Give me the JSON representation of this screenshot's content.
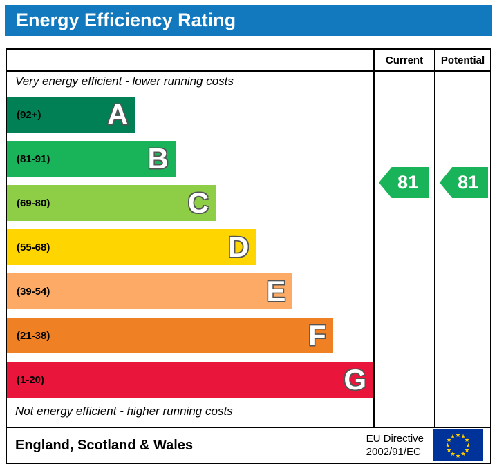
{
  "title": "Energy Efficiency Rating",
  "header_bg_color": "#1279be",
  "columns": {
    "current": "Current",
    "potential": "Potential"
  },
  "notes": {
    "top": "Very energy efficient - lower running costs",
    "bottom": "Not energy efficient - higher running costs"
  },
  "chart_data": {
    "type": "bar",
    "title": "Energy Efficiency Rating",
    "categories": [
      "A",
      "B",
      "C",
      "D",
      "E",
      "F",
      "G"
    ],
    "bands": [
      {
        "letter": "A",
        "range_label": "(92+)",
        "min": 92,
        "max": 100,
        "color": "#008054",
        "width_pct": 35
      },
      {
        "letter": "B",
        "range_label": "(81-91)",
        "min": 81,
        "max": 91,
        "color": "#19b459",
        "width_pct": 46
      },
      {
        "letter": "C",
        "range_label": "(69-80)",
        "min": 69,
        "max": 80,
        "color": "#8dce46",
        "width_pct": 57
      },
      {
        "letter": "D",
        "range_label": "(55-68)",
        "min": 55,
        "max": 68,
        "color": "#ffd500",
        "width_pct": 68
      },
      {
        "letter": "E",
        "range_label": "(39-54)",
        "min": 39,
        "max": 54,
        "color": "#fcaa65",
        "width_pct": 78
      },
      {
        "letter": "F",
        "range_label": "(21-38)",
        "min": 21,
        "max": 38,
        "color": "#ef8023",
        "width_pct": 89
      },
      {
        "letter": "G",
        "range_label": "(1-20)",
        "min": 1,
        "max": 20,
        "color": "#e9153b",
        "width_pct": 100
      }
    ],
    "ratings": {
      "current": {
        "value": 81,
        "band": "B",
        "color": "#19b459"
      },
      "potential": {
        "value": 81,
        "band": "B",
        "color": "#19b459"
      }
    }
  },
  "footer": {
    "region": "England, Scotland & Wales",
    "directive_line1": "EU Directive",
    "directive_line2": "2002/91/EC",
    "eu_flag": {
      "background": "#003399",
      "star_color": "#ffcc00"
    }
  }
}
